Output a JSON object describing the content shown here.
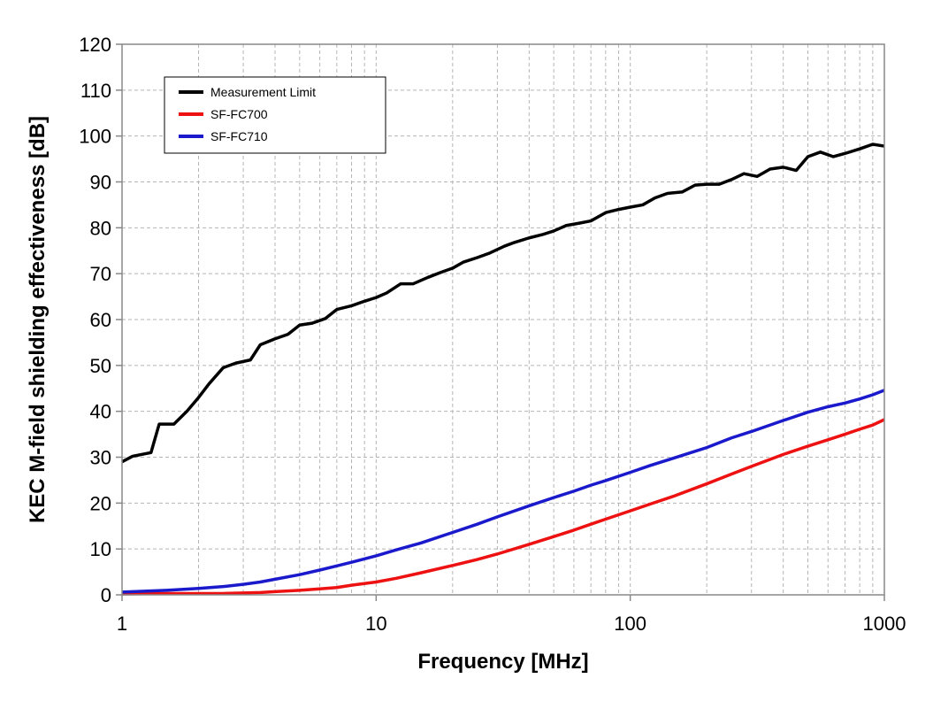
{
  "chart_data": {
    "type": "line",
    "xlabel": "Frequency [MHz]",
    "ylabel": "KEC M-field shielding effectiveness [dB]",
    "x_scale": "log",
    "xlim": [
      1,
      1000
    ],
    "ylim": [
      0,
      120
    ],
    "x_ticks": [
      1,
      10,
      100,
      1000
    ],
    "x_tick_labels": [
      "1",
      "10",
      "100",
      "1000"
    ],
    "y_ticks": [
      0,
      10,
      20,
      30,
      40,
      50,
      60,
      70,
      80,
      90,
      100,
      110,
      120
    ],
    "y_tick_labels": [
      "0",
      "10",
      "20",
      "30",
      "40",
      "50",
      "60",
      "70",
      "80",
      "90",
      "100",
      "110",
      "120"
    ],
    "grid": true,
    "legend_position": "top-left",
    "series": [
      {
        "name": "Measurement Limit",
        "color": "#000000",
        "x": [
          1,
          1.1,
          1.3,
          1.4,
          1.6,
          1.8,
          2,
          2.2,
          2.5,
          2.8,
          3.2,
          3.5,
          4,
          4.5,
          5,
          5.6,
          6.3,
          7,
          8,
          9,
          10,
          11,
          12.5,
          14,
          16,
          18,
          20,
          22,
          25,
          28,
          32,
          35,
          40,
          45,
          50,
          56,
          63,
          70,
          80,
          90,
          100,
          112,
          125,
          140,
          160,
          180,
          200,
          224,
          250,
          280,
          316,
          355,
          400,
          450,
          500,
          560,
          630,
          700,
          800,
          900,
          1000
        ],
        "y": [
          29,
          30.2,
          31,
          37.2,
          37.2,
          40,
          43,
          46,
          49.5,
          50.5,
          51.2,
          54.5,
          55.8,
          56.8,
          58.8,
          59.2,
          60.2,
          62.2,
          63,
          64,
          64.8,
          65.8,
          67.8,
          67.8,
          69.2,
          70.3,
          71.2,
          72.5,
          73.5,
          74.5,
          76,
          76.8,
          77.8,
          78.5,
          79.3,
          80.5,
          81,
          81.5,
          83.3,
          84,
          84.5,
          85,
          86.5,
          87.5,
          87.8,
          89.3,
          89.5,
          89.5,
          90.5,
          91.8,
          91.2,
          92.8,
          93.2,
          92.5,
          95.5,
          96.5,
          95.5,
          96.2,
          97.2,
          98.2,
          97.8
        ]
      },
      {
        "name": "SF-FC700",
        "color": "#ee1111",
        "x": [
          1,
          1.5,
          2,
          2.5,
          3,
          3.5,
          4,
          5,
          6,
          7,
          8,
          10,
          12,
          15,
          20,
          25,
          30,
          40,
          50,
          60,
          70,
          80,
          100,
          120,
          150,
          200,
          250,
          300,
          400,
          500,
          600,
          700,
          800,
          900,
          1000
        ],
        "y": [
          0.2,
          0.3,
          0.3,
          0.3,
          0.4,
          0.5,
          0.7,
          1.0,
          1.3,
          1.6,
          2.1,
          2.8,
          3.6,
          4.8,
          6.4,
          7.7,
          8.9,
          11.0,
          12.7,
          14.1,
          15.4,
          16.5,
          18.3,
          19.8,
          21.6,
          24.2,
          26.3,
          28.0,
          30.6,
          32.4,
          33.8,
          35.0,
          36.1,
          37.0,
          38.2
        ]
      },
      {
        "name": "SF-FC710",
        "color": "#1a1acc",
        "x": [
          1,
          1.5,
          2,
          2.5,
          3,
          3.5,
          4,
          5,
          6,
          7,
          8,
          10,
          12,
          15,
          20,
          25,
          30,
          40,
          50,
          60,
          70,
          80,
          100,
          120,
          150,
          200,
          250,
          300,
          400,
          500,
          600,
          700,
          800,
          900,
          1000
        ],
        "y": [
          0.6,
          1.0,
          1.4,
          1.8,
          2.3,
          2.8,
          3.4,
          4.4,
          5.4,
          6.3,
          7.1,
          8.5,
          9.8,
          11.3,
          13.6,
          15.4,
          17.0,
          19.4,
          21.2,
          22.6,
          23.9,
          24.9,
          26.7,
          28.2,
          29.9,
          32.1,
          34.2,
          35.6,
          38.0,
          39.8,
          41.0,
          41.8,
          42.7,
          43.6,
          44.6
        ]
      }
    ]
  }
}
